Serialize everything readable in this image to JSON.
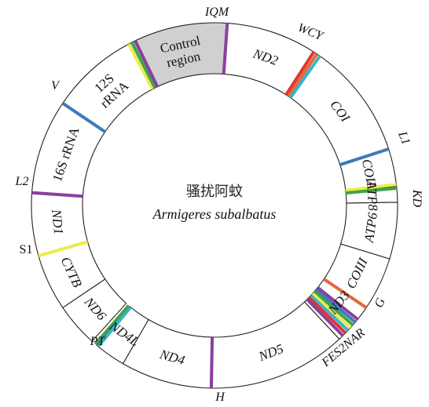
{
  "center": {
    "chinese_name": "骚扰阿蚊",
    "latin_name": "Armigeres subalbatus"
  },
  "colors": {
    "yellow": "#ecec4a",
    "green": "#3fa34d",
    "purple": "#8a3f9e",
    "blue": "#3c7bb8",
    "red": "#e3342b",
    "orange": "#e2693a",
    "cyan": "#38b3d0",
    "control_fill": "#d0d0d0",
    "outline": "#222222"
  },
  "segments": [
    {
      "id": "control-region",
      "lines": [
        "Control",
        "region"
      ],
      "italic": false,
      "start": 332,
      "end": 4,
      "fill": "control_fill",
      "trna_start": [
        "yellow",
        "green",
        "purple"
      ],
      "trna_end": [
        "purple"
      ]
    },
    {
      "id": "nd2",
      "lines": [
        "ND2"
      ],
      "italic": true,
      "start": 4,
      "end": 34,
      "trna_end": [
        "red",
        "orange",
        "cyan"
      ]
    },
    {
      "id": "coi",
      "lines": [
        "COI"
      ],
      "italic": true,
      "start": 34,
      "end": 72,
      "trna_end": [
        "blue"
      ]
    },
    {
      "id": "coii",
      "lines": [
        "COII"
      ],
      "italic": true,
      "start": 72,
      "end": 84,
      "trna_end": [
        "yellow",
        "green"
      ]
    },
    {
      "id": "atp8",
      "lines": [
        "ATP8"
      ],
      "italic": true,
      "start": 84,
      "end": 89
    },
    {
      "id": "atp6",
      "lines": [
        "ATP6"
      ],
      "italic": true,
      "start": 89,
      "end": 107
    },
    {
      "id": "coiii",
      "lines": [
        "COIII"
      ],
      "italic": true,
      "start": 107,
      "end": 124,
      "trna_end": [
        "orange"
      ]
    },
    {
      "id": "nd3",
      "lines": [
        "ND3"
      ],
      "italic": true,
      "start": 124,
      "end": 132,
      "trna_end": [
        "purple",
        "blue",
        "green",
        "yellow",
        "cyan",
        "red",
        "purple"
      ]
    },
    {
      "id": "nd5",
      "lines": [
        "ND5"
      ],
      "italic": true,
      "start": 137,
      "end": 181,
      "trna_end": [
        "purple"
      ]
    },
    {
      "id": "nd4",
      "lines": [
        "ND4"
      ],
      "italic": true,
      "start": 181,
      "end": 210
    },
    {
      "id": "nd4l",
      "lines": [
        "ND4L"
      ],
      "italic": true,
      "start": 210,
      "end": 220,
      "trna_end": [
        "cyan",
        "green"
      ]
    },
    {
      "id": "nd6",
      "lines": [
        "ND6"
      ],
      "italic": true,
      "start": 222,
      "end": 236
    },
    {
      "id": "cytb",
      "lines": [
        "CYTB"
      ],
      "italic": true,
      "start": 236,
      "end": 254,
      "trna_end": [
        "yellow"
      ]
    },
    {
      "id": "nd1",
      "lines": [
        "ND1"
      ],
      "italic": true,
      "start": 254,
      "end": 274,
      "trna_end": [
        "purple"
      ]
    },
    {
      "id": "16s-rrna",
      "lines": [
        "16S rRNA"
      ],
      "italic": false,
      "start": 274,
      "end": 304,
      "trna_end": [
        "blue"
      ]
    },
    {
      "id": "12s-rrna",
      "lines": [
        "12S",
        "rRNA"
      ],
      "italic": false,
      "start": 304,
      "end": 332
    }
  ],
  "outer_labels": [
    {
      "id": "iqm",
      "text": "IQM",
      "italic": true
    },
    {
      "id": "wcy",
      "text": "WCY",
      "italic": true
    },
    {
      "id": "l1",
      "text": "L1",
      "italic": true
    },
    {
      "id": "kd",
      "text": "KD",
      "italic": true
    },
    {
      "id": "g",
      "text": "G",
      "italic": true
    },
    {
      "id": "fes2nar",
      "text": "FES2NAR",
      "italic": true
    },
    {
      "id": "h",
      "text": "H",
      "italic": true
    },
    {
      "id": "pt",
      "text": "PT",
      "italic": true
    },
    {
      "id": "s1",
      "text": "S1",
      "italic": false
    },
    {
      "id": "l2",
      "text": "L2",
      "italic": true
    },
    {
      "id": "v",
      "text": "V",
      "italic": true
    }
  ]
}
